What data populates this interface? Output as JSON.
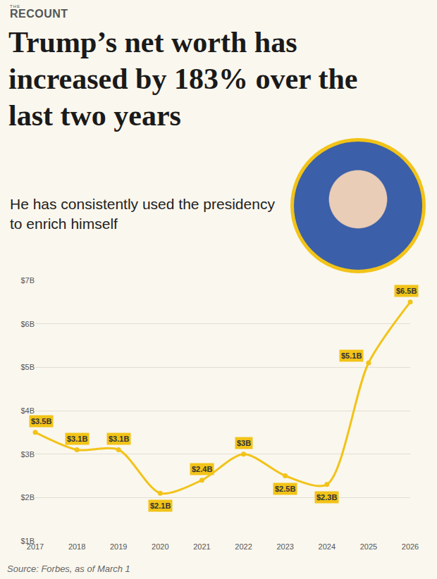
{
  "chart_data": {
    "type": "line",
    "brand": [
      "THE",
      "RECOUNT"
    ],
    "title": "Trump’s net worth has increased by 183% over the last two years",
    "subtitle": "He has consistently used the presidency to enrich himself",
    "source": "Source: Forbes, as of March 1",
    "x": [
      2017,
      2018,
      2019,
      2020,
      2021,
      2022,
      2023,
      2024,
      2025,
      2026
    ],
    "values": [
      3.5,
      3.1,
      3.1,
      2.1,
      2.4,
      3,
      2.5,
      2.3,
      5.1,
      6.5
    ],
    "value_labels": [
      "$3.5B",
      "$3.1B",
      "$3.1B",
      "$2.1B",
      "$2.4B",
      "$3B",
      "$2.5B",
      "$2.3B",
      "$5.1B",
      "$6.5B"
    ],
    "data_labels": true,
    "color": "#f2c318",
    "marker": "circle",
    "xlim": [
      2017,
      2026
    ],
    "xticks": [
      2017,
      2018,
      2019,
      2020,
      2021,
      2022,
      2023,
      2024,
      2025,
      2026
    ],
    "ylim": [
      1,
      7
    ],
    "yticks": [
      {
        "value": 1,
        "label": "$1B"
      },
      {
        "value": 2,
        "label": "$2B"
      },
      {
        "value": 3,
        "label": "$3B"
      },
      {
        "value": 4,
        "label": "$4B"
      },
      {
        "value": 5,
        "label": "$5B"
      },
      {
        "value": 6,
        "label": "$6B"
      },
      {
        "value": 7,
        "label": "$7B"
      }
    ],
    "grid": true
  }
}
